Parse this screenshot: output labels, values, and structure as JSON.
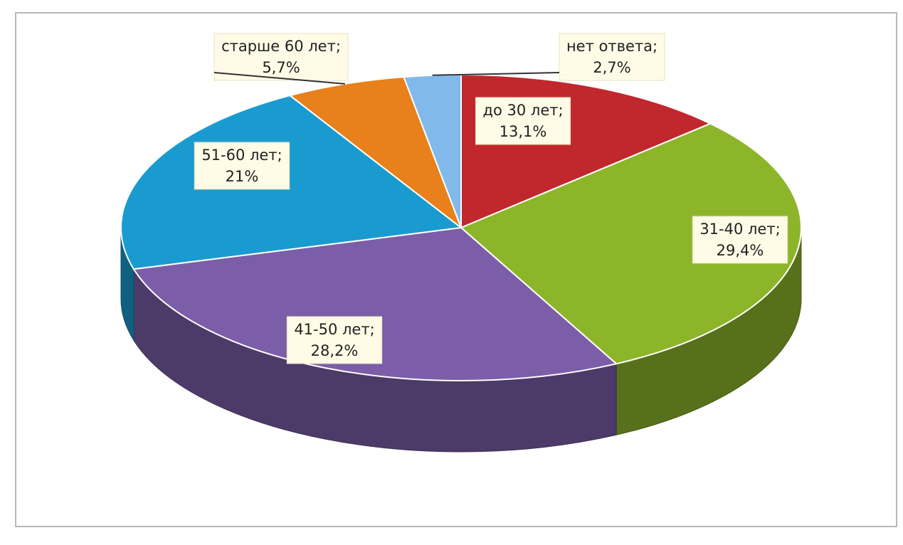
{
  "chart_data": {
    "type": "pie3d",
    "categories": [
      "до 30 лет;",
      "31-40 лет;",
      "41-50 лет;",
      "51-60 лет;",
      "старше 60 лет;",
      "нет ответа;"
    ],
    "values": [
      13.1,
      29.4,
      28.2,
      21,
      5.7,
      2.7
    ],
    "value_labels": [
      "13,1%",
      "29,4%",
      "28,2%",
      "21%",
      "5,7%",
      "2,7%"
    ],
    "colors": [
      "#c0282d",
      "#8db52a",
      "#7b5ea7",
      "#1a9bd0",
      "#e8801c",
      "#80b9ea"
    ]
  }
}
